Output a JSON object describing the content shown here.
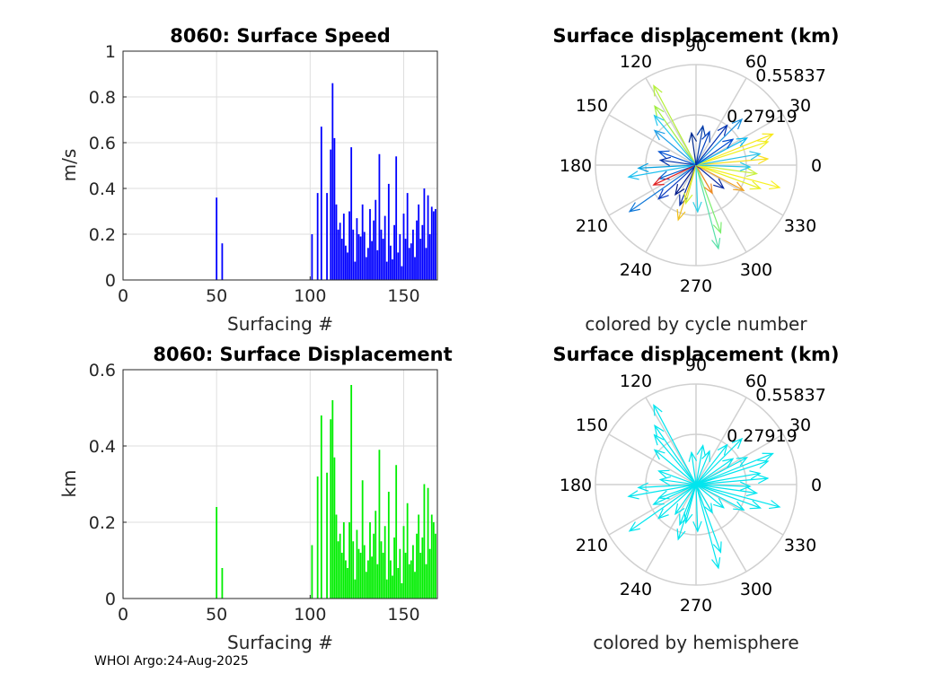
{
  "footer": "WHOI Argo:24-Aug-2025",
  "colors": {
    "speed_bar": "#0000ff",
    "disp_bar": "#00ee00",
    "hemisphere_arrow": "#00e5ee",
    "grid": "#dedede",
    "polar_grid": "#d0d0d0"
  },
  "chart_data": [
    {
      "type": "bar",
      "title": "8060: Surface Speed",
      "xlabel": "Surfacing #",
      "ylabel": "m/s",
      "xlim": [
        0,
        168
      ],
      "ylim": [
        0,
        1
      ],
      "xticks": [
        0,
        50,
        100,
        150
      ],
      "yticks": [
        0,
        0.2,
        0.4,
        0.6,
        0.8,
        1
      ],
      "ytick_labels": [
        "0",
        "0.2",
        "0.4",
        "0.6",
        "0.8",
        "1"
      ],
      "x": [
        50,
        53,
        101,
        104,
        106,
        109,
        111,
        112,
        113,
        114,
        115,
        116,
        117,
        118,
        119,
        120,
        121,
        122,
        123,
        124,
        125,
        126,
        127,
        128,
        129,
        130,
        131,
        132,
        133,
        134,
        135,
        136,
        137,
        138,
        139,
        140,
        141,
        142,
        143,
        144,
        145,
        146,
        147,
        148,
        149,
        150,
        151,
        152,
        153,
        154,
        155,
        156,
        157,
        158,
        159,
        160,
        161,
        162,
        163,
        164,
        165,
        166,
        167
      ],
      "values": [
        0.36,
        0.16,
        0.2,
        0.38,
        0.67,
        0.38,
        0.57,
        0.86,
        0.62,
        0.33,
        0.22,
        0.25,
        0.18,
        0.29,
        0.15,
        0.12,
        0.3,
        0.58,
        0.22,
        0.08,
        0.27,
        0.2,
        0.19,
        0.33,
        0.21,
        0.1,
        0.14,
        0.31,
        0.17,
        0.26,
        0.35,
        0.13,
        0.55,
        0.22,
        0.18,
        0.28,
        0.08,
        0.42,
        0.15,
        0.09,
        0.24,
        0.54,
        0.12,
        0.2,
        0.06,
        0.29,
        0.18,
        0.38,
        0.14,
        0.16,
        0.22,
        0.1,
        0.26,
        0.33,
        0.18,
        0.24,
        0.4,
        0.14,
        0.37,
        0.2,
        0.32,
        0.3,
        0.31
      ]
    },
    {
      "type": "bar",
      "title": "8060: Surface Displacement",
      "xlabel": "Surfacing #",
      "ylabel": "km",
      "xlim": [
        0,
        168
      ],
      "ylim": [
        0,
        0.6
      ],
      "xticks": [
        0,
        50,
        100,
        150
      ],
      "yticks": [
        0,
        0.2,
        0.4,
        0.6
      ],
      "ytick_labels": [
        "0",
        "0.2",
        "0.4",
        "0.6"
      ],
      "x": [
        50,
        53,
        101,
        104,
        106,
        109,
        111,
        112,
        113,
        114,
        115,
        116,
        117,
        118,
        119,
        120,
        121,
        122,
        123,
        124,
        125,
        126,
        127,
        128,
        129,
        130,
        131,
        132,
        133,
        134,
        135,
        136,
        137,
        138,
        139,
        140,
        141,
        142,
        143,
        144,
        145,
        146,
        147,
        148,
        149,
        150,
        151,
        152,
        153,
        154,
        155,
        156,
        157,
        158,
        159,
        160,
        161,
        162,
        163,
        164,
        165,
        166,
        167
      ],
      "values": [
        0.24,
        0.08,
        0.14,
        0.32,
        0.48,
        0.33,
        0.47,
        0.52,
        0.37,
        0.22,
        0.15,
        0.17,
        0.12,
        0.2,
        0.1,
        0.08,
        0.2,
        0.56,
        0.15,
        0.05,
        0.18,
        0.13,
        0.12,
        0.31,
        0.14,
        0.07,
        0.1,
        0.2,
        0.11,
        0.17,
        0.23,
        0.09,
        0.39,
        0.15,
        0.12,
        0.19,
        0.05,
        0.28,
        0.1,
        0.06,
        0.16,
        0.35,
        0.08,
        0.13,
        0.04,
        0.19,
        0.12,
        0.25,
        0.09,
        0.1,
        0.14,
        0.07,
        0.17,
        0.22,
        0.12,
        0.16,
        0.3,
        0.09,
        0.29,
        0.13,
        0.22,
        0.2,
        0.17
      ]
    },
    {
      "type": "polar-quiver",
      "title": "Surface displacement (km)",
      "caption": "colored by cycle number",
      "rlim": [
        0,
        0.55837
      ],
      "rtick_labels": [
        "0.27919",
        "0.55837"
      ],
      "angle_labels": [
        "0",
        "30",
        "60",
        "90",
        "120",
        "150",
        "180",
        "210",
        "240",
        "270",
        "300",
        "330"
      ],
      "arrows": [
        {
          "deg": 118,
          "r": 0.5,
          "color": "#b5f03a"
        },
        {
          "deg": 125,
          "r": 0.4,
          "color": "#a0ee40"
        },
        {
          "deg": 130,
          "r": 0.36,
          "color": "#28c8ee"
        },
        {
          "deg": 140,
          "r": 0.3,
          "color": "#1ea0e8"
        },
        {
          "deg": 160,
          "r": 0.22,
          "color": "#0050d0"
        },
        {
          "deg": 172,
          "r": 0.2,
          "color": "#0030a8"
        },
        {
          "deg": 183,
          "r": 0.32,
          "color": "#00a0e0"
        },
        {
          "deg": 190,
          "r": 0.38,
          "color": "#20c0f0"
        },
        {
          "deg": 200,
          "r": 0.22,
          "color": "#0060d0"
        },
        {
          "deg": 205,
          "r": 0.26,
          "color": "#e02020"
        },
        {
          "deg": 215,
          "r": 0.45,
          "color": "#1078d8"
        },
        {
          "deg": 222,
          "r": 0.28,
          "color": "#0a3cc0"
        },
        {
          "deg": 235,
          "r": 0.2,
          "color": "#001a8a"
        },
        {
          "deg": 248,
          "r": 0.24,
          "color": "#0028a0"
        },
        {
          "deg": 252,
          "r": 0.32,
          "color": "#f0c020"
        },
        {
          "deg": 255,
          "r": 0.22,
          "color": "#d0f030"
        },
        {
          "deg": 272,
          "r": 0.26,
          "color": "#2ed0e8"
        },
        {
          "deg": 285,
          "r": 0.48,
          "color": "#58e0a8"
        },
        {
          "deg": 290,
          "r": 0.4,
          "color": "#7cee70"
        },
        {
          "deg": 300,
          "r": 0.18,
          "color": "#f08a20"
        },
        {
          "deg": 320,
          "r": 0.2,
          "color": "#0a2aa0"
        },
        {
          "deg": 332,
          "r": 0.3,
          "color": "#f0a020"
        },
        {
          "deg": 340,
          "r": 0.38,
          "color": "#e8f020"
        },
        {
          "deg": 345,
          "r": 0.48,
          "color": "#f8f020"
        },
        {
          "deg": 352,
          "r": 0.34,
          "color": "#c8f040"
        },
        {
          "deg": 358,
          "r": 0.3,
          "color": "#28c8e8"
        },
        {
          "deg": 5,
          "r": 0.4,
          "color": "#f8e020"
        },
        {
          "deg": 10,
          "r": 0.36,
          "color": "#28c0e8"
        },
        {
          "deg": 18,
          "r": 0.42,
          "color": "#f0f020"
        },
        {
          "deg": 22,
          "r": 0.46,
          "color": "#f8e818"
        },
        {
          "deg": 28,
          "r": 0.32,
          "color": "#00b8f0"
        },
        {
          "deg": 35,
          "r": 0.25,
          "color": "#004ad0"
        },
        {
          "deg": 45,
          "r": 0.36,
          "color": "#1890e0"
        },
        {
          "deg": 52,
          "r": 0.28,
          "color": "#0030b0"
        },
        {
          "deg": 68,
          "r": 0.2,
          "color": "#0040c0"
        },
        {
          "deg": 80,
          "r": 0.22,
          "color": "#003aa8"
        },
        {
          "deg": 98,
          "r": 0.18,
          "color": "#002a90"
        }
      ]
    },
    {
      "type": "polar-quiver",
      "title": "Surface displacement (km)",
      "caption": "colored by hemisphere",
      "rlim": [
        0,
        0.55837
      ],
      "rtick_labels": [
        "0.27919",
        "0.55837"
      ],
      "angle_labels": [
        "0",
        "30",
        "60",
        "90",
        "120",
        "150",
        "180",
        "210",
        "240",
        "270",
        "300",
        "330"
      ],
      "arrows": [
        {
          "deg": 118,
          "r": 0.5,
          "color": "#00e5ee"
        },
        {
          "deg": 125,
          "r": 0.4,
          "color": "#00e5ee"
        },
        {
          "deg": 130,
          "r": 0.36,
          "color": "#00e5ee"
        },
        {
          "deg": 140,
          "r": 0.3,
          "color": "#00e5ee"
        },
        {
          "deg": 160,
          "r": 0.22,
          "color": "#00e5ee"
        },
        {
          "deg": 172,
          "r": 0.2,
          "color": "#00e5ee"
        },
        {
          "deg": 183,
          "r": 0.32,
          "color": "#00e5ee"
        },
        {
          "deg": 190,
          "r": 0.38,
          "color": "#00e5ee"
        },
        {
          "deg": 200,
          "r": 0.22,
          "color": "#00e5ee"
        },
        {
          "deg": 205,
          "r": 0.26,
          "color": "#00e5ee"
        },
        {
          "deg": 215,
          "r": 0.45,
          "color": "#00e5ee"
        },
        {
          "deg": 222,
          "r": 0.28,
          "color": "#00e5ee"
        },
        {
          "deg": 235,
          "r": 0.2,
          "color": "#00e5ee"
        },
        {
          "deg": 248,
          "r": 0.24,
          "color": "#00e5ee"
        },
        {
          "deg": 252,
          "r": 0.32,
          "color": "#00e5ee"
        },
        {
          "deg": 255,
          "r": 0.22,
          "color": "#00e5ee"
        },
        {
          "deg": 272,
          "r": 0.26,
          "color": "#00e5ee"
        },
        {
          "deg": 285,
          "r": 0.48,
          "color": "#00e5ee"
        },
        {
          "deg": 290,
          "r": 0.4,
          "color": "#00e5ee"
        },
        {
          "deg": 300,
          "r": 0.18,
          "color": "#00e5ee"
        },
        {
          "deg": 320,
          "r": 0.2,
          "color": "#00e5ee"
        },
        {
          "deg": 332,
          "r": 0.3,
          "color": "#00e5ee"
        },
        {
          "deg": 340,
          "r": 0.38,
          "color": "#00e5ee"
        },
        {
          "deg": 345,
          "r": 0.48,
          "color": "#00e5ee"
        },
        {
          "deg": 352,
          "r": 0.34,
          "color": "#00e5ee"
        },
        {
          "deg": 358,
          "r": 0.3,
          "color": "#00e5ee"
        },
        {
          "deg": 5,
          "r": 0.4,
          "color": "#00e5ee"
        },
        {
          "deg": 10,
          "r": 0.36,
          "color": "#00e5ee"
        },
        {
          "deg": 18,
          "r": 0.42,
          "color": "#00e5ee"
        },
        {
          "deg": 22,
          "r": 0.46,
          "color": "#00e5ee"
        },
        {
          "deg": 28,
          "r": 0.32,
          "color": "#00e5ee"
        },
        {
          "deg": 35,
          "r": 0.25,
          "color": "#00e5ee"
        },
        {
          "deg": 45,
          "r": 0.36,
          "color": "#00e5ee"
        },
        {
          "deg": 52,
          "r": 0.28,
          "color": "#00e5ee"
        },
        {
          "deg": 68,
          "r": 0.2,
          "color": "#00e5ee"
        },
        {
          "deg": 80,
          "r": 0.22,
          "color": "#00e5ee"
        },
        {
          "deg": 98,
          "r": 0.18,
          "color": "#00e5ee"
        }
      ]
    }
  ]
}
